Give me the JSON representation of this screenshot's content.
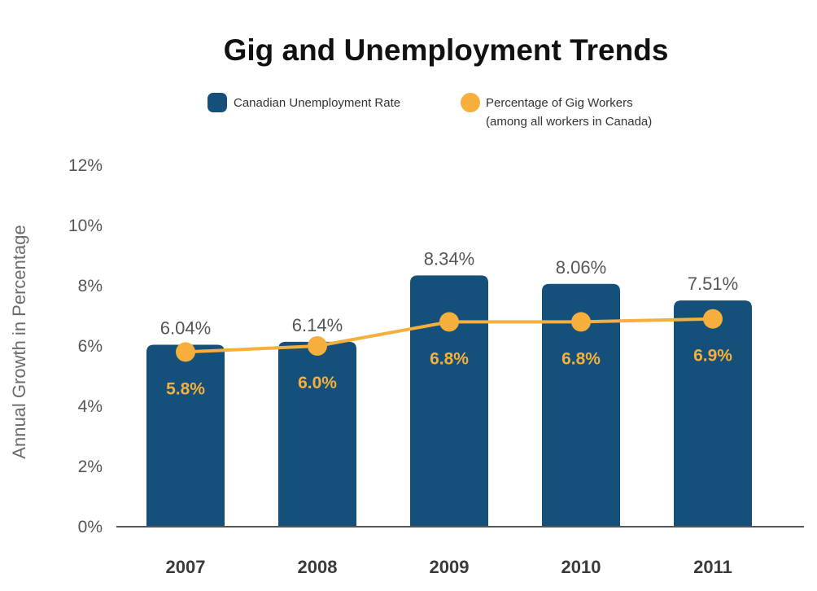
{
  "chart_data": {
    "type": "bar",
    "title": "Gig and Unemployment Trends",
    "categories": [
      "2007",
      "2008",
      "2009",
      "2010",
      "2011"
    ],
    "series": [
      {
        "name": "Canadian Unemployment Rate",
        "type": "bar",
        "color": "#14507a",
        "values": [
          6.04,
          6.14,
          8.34,
          8.06,
          7.51
        ],
        "labels": [
          "6.04%",
          "6.14%",
          "8.34%",
          "8.06%",
          "7.51%"
        ]
      },
      {
        "name": "Percentage of Gig Workers",
        "name_line2": "(among all workers in Canada)",
        "type": "line",
        "color": "#f6ae3c",
        "values": [
          5.8,
          6.0,
          6.8,
          6.8,
          6.9
        ],
        "labels": [
          "5.8%",
          "6.0%",
          "6.8%",
          "6.8%",
          "6.9%"
        ]
      }
    ],
    "xlabel": "",
    "ylabel": "Annual Growth in Percentage",
    "ylim": [
      0,
      12
    ],
    "yticks": [
      "0%",
      "2%",
      "4%",
      "6%",
      "8%",
      "10%",
      "12%"
    ],
    "legend_position": "top-center",
    "grid": false
  }
}
